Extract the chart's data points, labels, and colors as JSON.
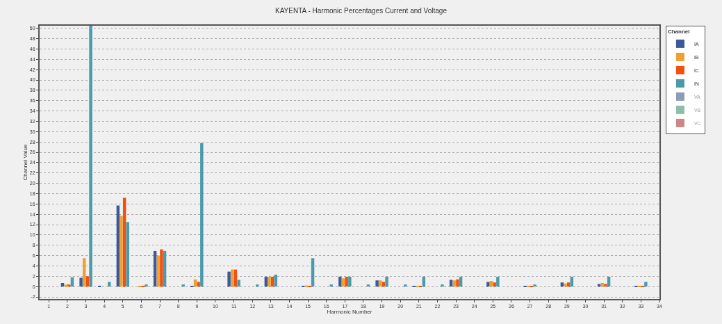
{
  "chart_data": {
    "type": "bar",
    "title": "KAYENTA - Harmonic Percentages Current and Voltage",
    "xlabel": "Harmonic Number",
    "ylabel": "Channel Value",
    "legend_title": "Channel",
    "legend": "top right",
    "grid": "y",
    "x": [
      2,
      3,
      4,
      5,
      6,
      7,
      8,
      9,
      10,
      11,
      12,
      13,
      14,
      15,
      16,
      17,
      18,
      19,
      20,
      21,
      22,
      23,
      24,
      25,
      26,
      27,
      28,
      29,
      30,
      31,
      32,
      33
    ],
    "xlim": [
      0.5,
      34
    ],
    "xticks": [
      1,
      2,
      3,
      4,
      5,
      6,
      7,
      8,
      9,
      10,
      11,
      12,
      13,
      14,
      15,
      16,
      17,
      18,
      19,
      20,
      21,
      22,
      23,
      24,
      25,
      26,
      27,
      28,
      29,
      30,
      31,
      32,
      33,
      34
    ],
    "ylim": [
      -2.4,
      50.5
    ],
    "yticks": [
      -2,
      0,
      2,
      4,
      6,
      8,
      10,
      12,
      14,
      16,
      18,
      20,
      22,
      24,
      26,
      28,
      30,
      32,
      34,
      36,
      38,
      40,
      42,
      44,
      46,
      48,
      50
    ],
    "series": [
      {
        "name": "IA",
        "color": "#3a5a9a",
        "values": [
          0.7,
          1.7,
          0.1,
          15.7,
          0,
          6.9,
          0,
          0.1,
          0,
          2.9,
          0,
          1.9,
          0,
          0.1,
          0,
          1.9,
          0,
          1.2,
          0,
          0.1,
          0,
          1.3,
          0,
          0.9,
          0,
          0.1,
          0,
          0.8,
          0,
          0.5,
          0,
          0.1
        ]
      },
      {
        "name": "IB",
        "color": "#f0a030",
        "values": [
          0.4,
          5.5,
          0,
          13.7,
          0.1,
          6.0,
          0,
          1.4,
          0,
          3.3,
          0,
          1.9,
          0,
          0.2,
          0,
          1.6,
          0,
          1.2,
          0,
          0.1,
          0,
          1.2,
          0,
          1.1,
          0,
          0.1,
          0,
          0.6,
          0,
          0.7,
          0,
          0.1
        ]
      },
      {
        "name": "IC",
        "color": "#f05010",
        "values": [
          0.4,
          2.0,
          0,
          17.2,
          0.1,
          7.2,
          0,
          0.9,
          0,
          3.3,
          0,
          1.9,
          0,
          0.1,
          0,
          1.9,
          0,
          0.9,
          0,
          0.1,
          0,
          1.4,
          0,
          0.8,
          0,
          0.1,
          0,
          0.8,
          0,
          0.5,
          0,
          0.1
        ]
      },
      {
        "name": "IN",
        "color": "#4a9aaa",
        "values": [
          1.8,
          50.5,
          0.9,
          12.5,
          0.4,
          6.9,
          0.4,
          27.8,
          0,
          1.3,
          0.4,
          2.3,
          0,
          5.5,
          0.4,
          1.9,
          0.4,
          1.9,
          0.4,
          1.9,
          0.4,
          1.9,
          0,
          1.9,
          0,
          0.4,
          0,
          1.9,
          0,
          1.9,
          0,
          0.9
        ]
      },
      {
        "name": "VA",
        "color": "#203a70",
        "values": [
          null,
          null,
          null,
          null,
          null,
          null,
          null,
          null,
          null,
          null,
          null,
          null,
          null,
          null,
          null,
          null,
          null,
          null,
          null,
          null,
          null,
          null,
          null,
          null,
          null,
          null,
          null,
          null,
          null,
          null,
          null,
          null
        ]
      },
      {
        "name": "VB",
        "color": "#208060",
        "values": [
          null,
          null,
          null,
          null,
          null,
          null,
          null,
          null,
          null,
          null,
          null,
          null,
          null,
          null,
          null,
          null,
          null,
          null,
          null,
          null,
          null,
          null,
          null,
          null,
          null,
          null,
          null,
          null,
          null,
          null,
          null,
          null
        ]
      },
      {
        "name": "VC",
        "color": "#a01010",
        "values": [
          null,
          null,
          null,
          null,
          null,
          null,
          null,
          null,
          null,
          null,
          null,
          null,
          null,
          null,
          null,
          null,
          null,
          null,
          null,
          null,
          null,
          null,
          null,
          null,
          null,
          null,
          null,
          null,
          null,
          null,
          null,
          null
        ]
      }
    ]
  }
}
